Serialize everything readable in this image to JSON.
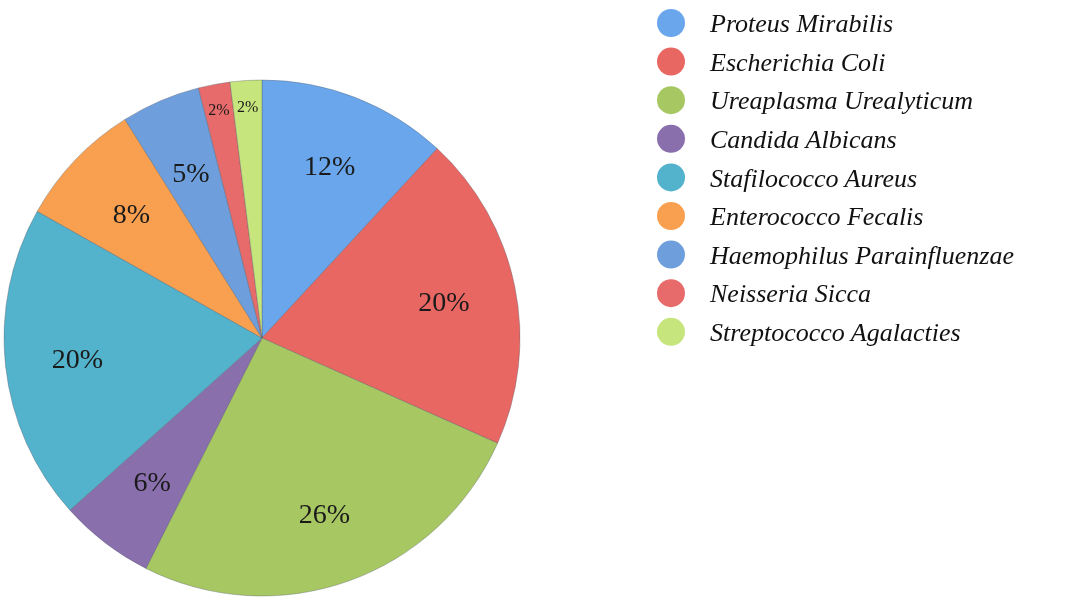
{
  "chart_data": {
    "type": "pie",
    "categories": [
      "Proteus Mirabilis",
      "Escherichia Coli",
      "Ureaplasma Urealyticum",
      "Candida Albicans",
      "Stafilococco Aureus",
      "Enterococco Fecalis",
      "Haemophilus Parainfluenzae",
      "Neisseria Sicca",
      "Streptococco Agalacties"
    ],
    "values": [
      12,
      20,
      26,
      6,
      20,
      8,
      5,
      2,
      2
    ],
    "value_labels": [
      "12%",
      "20%",
      "26%",
      "6%",
      "20%",
      "8%",
      "5%",
      "2%",
      "2%"
    ],
    "colors": [
      "#6aa6ec",
      "#e96763",
      "#a7c762",
      "#8a6fad",
      "#53b2cc",
      "#f9a050",
      "#6e9fdc",
      "#e86b6b",
      "#c6e57c"
    ],
    "legend": "top right"
  }
}
